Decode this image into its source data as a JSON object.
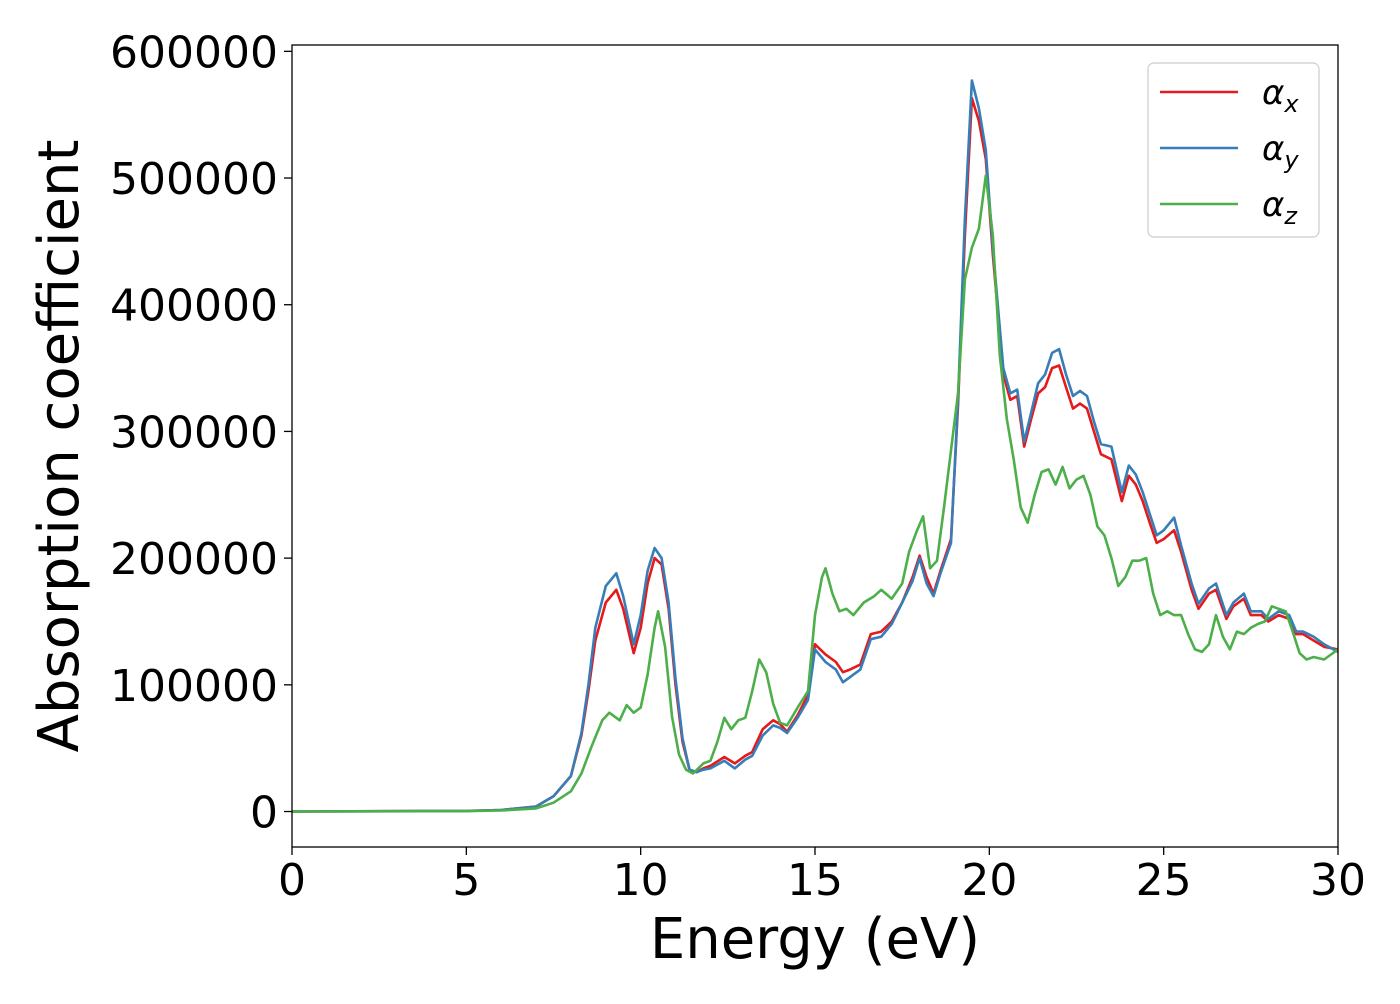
{
  "chart_data": {
    "type": "line",
    "title": "",
    "xlabel": "Energy (eV)",
    "ylabel": "Absorption coefficient",
    "xlim": [
      0,
      30
    ],
    "ylim": [
      -28000,
      605000
    ],
    "xticks": [
      0,
      5,
      10,
      15,
      20,
      25,
      30
    ],
    "xtick_labels": [
      "0",
      "5",
      "10",
      "15",
      "20",
      "25",
      "30"
    ],
    "yticks": [
      0,
      100000,
      200000,
      300000,
      400000,
      500000,
      600000
    ],
    "ytick_labels": [
      "0",
      "100000",
      "200000",
      "300000",
      "400000",
      "500000",
      "600000"
    ],
    "grid": false,
    "legend": "top-right",
    "series": [
      {
        "name": "αx",
        "symbol": "α",
        "subscript": "x",
        "color": "#e41a1c",
        "points": [
          [
            0,
            0
          ],
          [
            5,
            500
          ],
          [
            6,
            1200
          ],
          [
            7,
            4000
          ],
          [
            7.5,
            12000
          ],
          [
            8,
            28000
          ],
          [
            8.3,
            60000
          ],
          [
            8.5,
            95000
          ],
          [
            8.7,
            135000
          ],
          [
            9,
            165000
          ],
          [
            9.3,
            175000
          ],
          [
            9.5,
            160000
          ],
          [
            9.8,
            125000
          ],
          [
            10,
            145000
          ],
          [
            10.2,
            180000
          ],
          [
            10.4,
            200000
          ],
          [
            10.6,
            195000
          ],
          [
            10.8,
            160000
          ],
          [
            11,
            100000
          ],
          [
            11.2,
            55000
          ],
          [
            11.4,
            33000
          ],
          [
            11.6,
            31000
          ],
          [
            11.8,
            34000
          ],
          [
            12,
            36000
          ],
          [
            12.4,
            43000
          ],
          [
            12.7,
            38000
          ],
          [
            13,
            44000
          ],
          [
            13.2,
            47000
          ],
          [
            13.5,
            65000
          ],
          [
            13.8,
            72000
          ],
          [
            14,
            69000
          ],
          [
            14.2,
            63000
          ],
          [
            14.5,
            76000
          ],
          [
            14.8,
            92000
          ],
          [
            15,
            132000
          ],
          [
            15.3,
            124000
          ],
          [
            15.6,
            118000
          ],
          [
            15.8,
            110000
          ],
          [
            16,
            112000
          ],
          [
            16.3,
            116000
          ],
          [
            16.6,
            140000
          ],
          [
            16.9,
            142000
          ],
          [
            17.2,
            150000
          ],
          [
            17.5,
            165000
          ],
          [
            17.8,
            185000
          ],
          [
            18,
            202000
          ],
          [
            18.2,
            185000
          ],
          [
            18.4,
            172000
          ],
          [
            18.6,
            190000
          ],
          [
            18.9,
            215000
          ],
          [
            19.1,
            320000
          ],
          [
            19.3,
            455000
          ],
          [
            19.5,
            563000
          ],
          [
            19.7,
            545000
          ],
          [
            19.9,
            515000
          ],
          [
            20.1,
            440000
          ],
          [
            20.4,
            345000
          ],
          [
            20.6,
            325000
          ],
          [
            20.8,
            328000
          ],
          [
            21,
            288000
          ],
          [
            21.2,
            310000
          ],
          [
            21.4,
            330000
          ],
          [
            21.6,
            335000
          ],
          [
            21.8,
            350000
          ],
          [
            22,
            352000
          ],
          [
            22.2,
            335000
          ],
          [
            22.4,
            318000
          ],
          [
            22.6,
            322000
          ],
          [
            22.8,
            318000
          ],
          [
            23,
            300000
          ],
          [
            23.2,
            282000
          ],
          [
            23.5,
            278000
          ],
          [
            23.8,
            245000
          ],
          [
            24,
            265000
          ],
          [
            24.2,
            258000
          ],
          [
            24.4,
            245000
          ],
          [
            24.6,
            228000
          ],
          [
            24.8,
            212000
          ],
          [
            25,
            215000
          ],
          [
            25.3,
            222000
          ],
          [
            25.5,
            205000
          ],
          [
            25.8,
            175000
          ],
          [
            26,
            160000
          ],
          [
            26.3,
            172000
          ],
          [
            26.5,
            175000
          ],
          [
            26.8,
            152000
          ],
          [
            27,
            162000
          ],
          [
            27.3,
            168000
          ],
          [
            27.5,
            155000
          ],
          [
            27.8,
            155000
          ],
          [
            28,
            150000
          ],
          [
            28.3,
            155000
          ],
          [
            28.6,
            152000
          ],
          [
            28.8,
            140000
          ],
          [
            29,
            140000
          ],
          [
            29.3,
            135000
          ],
          [
            29.6,
            130000
          ],
          [
            30,
            128000
          ]
        ]
      },
      {
        "name": "αy",
        "symbol": "α",
        "subscript": "y",
        "color": "#377eb8",
        "points": [
          [
            0,
            0
          ],
          [
            5,
            500
          ],
          [
            6,
            1200
          ],
          [
            7,
            4000
          ],
          [
            7.5,
            12000
          ],
          [
            8,
            28000
          ],
          [
            8.3,
            62000
          ],
          [
            8.5,
            100000
          ],
          [
            8.7,
            145000
          ],
          [
            9,
            178000
          ],
          [
            9.3,
            188000
          ],
          [
            9.5,
            170000
          ],
          [
            9.8,
            132000
          ],
          [
            10,
            155000
          ],
          [
            10.2,
            190000
          ],
          [
            10.4,
            208000
          ],
          [
            10.6,
            200000
          ],
          [
            10.8,
            165000
          ],
          [
            11,
            105000
          ],
          [
            11.2,
            58000
          ],
          [
            11.4,
            33000
          ],
          [
            11.6,
            31000
          ],
          [
            11.8,
            33000
          ],
          [
            12,
            34000
          ],
          [
            12.4,
            40000
          ],
          [
            12.7,
            34000
          ],
          [
            13,
            41000
          ],
          [
            13.2,
            44000
          ],
          [
            13.5,
            60000
          ],
          [
            13.8,
            68000
          ],
          [
            14,
            66000
          ],
          [
            14.2,
            62000
          ],
          [
            14.5,
            74000
          ],
          [
            14.8,
            88000
          ],
          [
            15,
            128000
          ],
          [
            15.3,
            118000
          ],
          [
            15.6,
            112000
          ],
          [
            15.8,
            102000
          ],
          [
            16,
            106000
          ],
          [
            16.3,
            112000
          ],
          [
            16.6,
            136000
          ],
          [
            16.9,
            138000
          ],
          [
            17.2,
            148000
          ],
          [
            17.5,
            165000
          ],
          [
            17.8,
            182000
          ],
          [
            18,
            200000
          ],
          [
            18.2,
            180000
          ],
          [
            18.4,
            170000
          ],
          [
            18.6,
            188000
          ],
          [
            18.9,
            212000
          ],
          [
            19.1,
            325000
          ],
          [
            19.3,
            468000
          ],
          [
            19.5,
            577000
          ],
          [
            19.7,
            555000
          ],
          [
            19.9,
            522000
          ],
          [
            20.1,
            445000
          ],
          [
            20.4,
            350000
          ],
          [
            20.6,
            330000
          ],
          [
            20.8,
            333000
          ],
          [
            21,
            292000
          ],
          [
            21.2,
            315000
          ],
          [
            21.4,
            338000
          ],
          [
            21.6,
            345000
          ],
          [
            21.8,
            362000
          ],
          [
            22,
            365000
          ],
          [
            22.2,
            345000
          ],
          [
            22.4,
            328000
          ],
          [
            22.6,
            332000
          ],
          [
            22.8,
            328000
          ],
          [
            23,
            308000
          ],
          [
            23.2,
            290000
          ],
          [
            23.5,
            288000
          ],
          [
            23.8,
            252000
          ],
          [
            24,
            273000
          ],
          [
            24.2,
            266000
          ],
          [
            24.4,
            252000
          ],
          [
            24.6,
            235000
          ],
          [
            24.8,
            218000
          ],
          [
            25,
            222000
          ],
          [
            25.3,
            232000
          ],
          [
            25.5,
            210000
          ],
          [
            25.8,
            180000
          ],
          [
            26,
            164000
          ],
          [
            26.3,
            176000
          ],
          [
            26.5,
            180000
          ],
          [
            26.8,
            155000
          ],
          [
            27,
            165000
          ],
          [
            27.3,
            172000
          ],
          [
            27.5,
            158000
          ],
          [
            27.8,
            158000
          ],
          [
            28,
            152000
          ],
          [
            28.3,
            158000
          ],
          [
            28.6,
            155000
          ],
          [
            28.8,
            142000
          ],
          [
            29,
            142000
          ],
          [
            29.3,
            138000
          ],
          [
            29.6,
            132000
          ],
          [
            30,
            126000
          ]
        ]
      },
      {
        "name": "αz",
        "symbol": "α",
        "subscript": "z",
        "color": "#4daf4a",
        "points": [
          [
            0,
            0
          ],
          [
            5,
            300
          ],
          [
            6,
            800
          ],
          [
            7,
            2500
          ],
          [
            7.5,
            7000
          ],
          [
            8,
            16000
          ],
          [
            8.3,
            30000
          ],
          [
            8.6,
            52000
          ],
          [
            8.9,
            72000
          ],
          [
            9.1,
            78000
          ],
          [
            9.4,
            72000
          ],
          [
            9.6,
            84000
          ],
          [
            9.8,
            78000
          ],
          [
            10,
            82000
          ],
          [
            10.2,
            108000
          ],
          [
            10.4,
            145000
          ],
          [
            10.5,
            158000
          ],
          [
            10.7,
            130000
          ],
          [
            10.9,
            75000
          ],
          [
            11.1,
            45000
          ],
          [
            11.3,
            33000
          ],
          [
            11.5,
            30000
          ],
          [
            11.8,
            38000
          ],
          [
            12,
            40000
          ],
          [
            12.2,
            55000
          ],
          [
            12.4,
            74000
          ],
          [
            12.6,
            65000
          ],
          [
            12.8,
            72000
          ],
          [
            13,
            74000
          ],
          [
            13.2,
            95000
          ],
          [
            13.4,
            120000
          ],
          [
            13.6,
            110000
          ],
          [
            13.8,
            85000
          ],
          [
            14,
            70000
          ],
          [
            14.2,
            68000
          ],
          [
            14.5,
            82000
          ],
          [
            14.8,
            95000
          ],
          [
            15,
            155000
          ],
          [
            15.2,
            185000
          ],
          [
            15.3,
            192000
          ],
          [
            15.5,
            172000
          ],
          [
            15.7,
            158000
          ],
          [
            15.9,
            160000
          ],
          [
            16.1,
            155000
          ],
          [
            16.4,
            165000
          ],
          [
            16.7,
            170000
          ],
          [
            16.9,
            175000
          ],
          [
            17.2,
            168000
          ],
          [
            17.5,
            180000
          ],
          [
            17.7,
            205000
          ],
          [
            17.9,
            220000
          ],
          [
            18.1,
            233000
          ],
          [
            18.3,
            192000
          ],
          [
            18.5,
            198000
          ],
          [
            18.7,
            240000
          ],
          [
            18.9,
            285000
          ],
          [
            19.1,
            330000
          ],
          [
            19.3,
            420000
          ],
          [
            19.5,
            445000
          ],
          [
            19.7,
            460000
          ],
          [
            19.9,
            502000
          ],
          [
            20.1,
            455000
          ],
          [
            20.3,
            360000
          ],
          [
            20.5,
            310000
          ],
          [
            20.7,
            278000
          ],
          [
            20.9,
            240000
          ],
          [
            21.1,
            228000
          ],
          [
            21.3,
            250000
          ],
          [
            21.5,
            268000
          ],
          [
            21.7,
            270000
          ],
          [
            21.9,
            258000
          ],
          [
            22.1,
            272000
          ],
          [
            22.3,
            255000
          ],
          [
            22.5,
            262000
          ],
          [
            22.7,
            265000
          ],
          [
            22.9,
            250000
          ],
          [
            23.1,
            225000
          ],
          [
            23.3,
            218000
          ],
          [
            23.5,
            200000
          ],
          [
            23.7,
            178000
          ],
          [
            23.9,
            185000
          ],
          [
            24.1,
            198000
          ],
          [
            24.3,
            198000
          ],
          [
            24.5,
            200000
          ],
          [
            24.7,
            172000
          ],
          [
            24.9,
            155000
          ],
          [
            25.1,
            158000
          ],
          [
            25.3,
            155000
          ],
          [
            25.5,
            155000
          ],
          [
            25.7,
            140000
          ],
          [
            25.9,
            128000
          ],
          [
            26.1,
            126000
          ],
          [
            26.3,
            132000
          ],
          [
            26.5,
            155000
          ],
          [
            26.7,
            138000
          ],
          [
            26.9,
            128000
          ],
          [
            27.1,
            142000
          ],
          [
            27.3,
            140000
          ],
          [
            27.5,
            145000
          ],
          [
            27.7,
            148000
          ],
          [
            27.9,
            150000
          ],
          [
            28.1,
            162000
          ],
          [
            28.3,
            160000
          ],
          [
            28.5,
            158000
          ],
          [
            28.7,
            142000
          ],
          [
            28.9,
            125000
          ],
          [
            29.1,
            120000
          ],
          [
            29.3,
            122000
          ],
          [
            29.6,
            120000
          ],
          [
            30,
            128000
          ]
        ]
      }
    ]
  }
}
